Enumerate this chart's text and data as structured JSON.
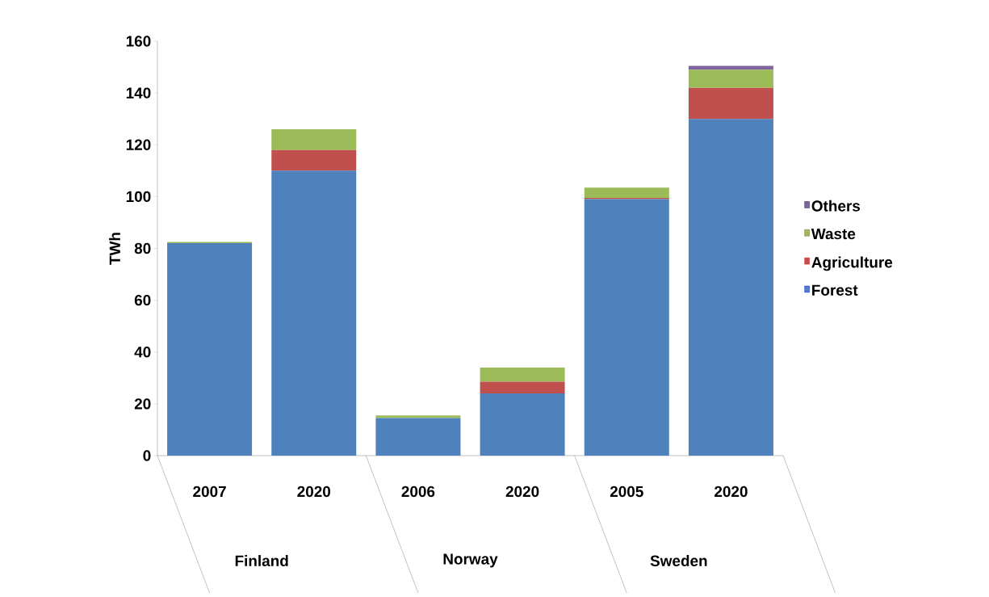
{
  "chart_data": {
    "type": "bar",
    "stacked": true,
    "ylabel": "TWh",
    "categories": [
      "2007",
      "2020",
      "2006",
      "2020",
      "2005",
      "2020"
    ],
    "annotations": [
      "Finland",
      "Norway",
      "Sweden"
    ],
    "series": [
      {
        "name": "Forest",
        "color": "#4f81bd",
        "values": [
          82,
          110,
          14.5,
          24,
          99,
          130
        ]
      },
      {
        "name": "Agriculture",
        "color": "#c0504d",
        "values": [
          0,
          8,
          0,
          4.5,
          0.5,
          12
        ]
      },
      {
        "name": "Waste",
        "color": "#9bbb59",
        "values": [
          0.5,
          8,
          1,
          5.5,
          4,
          7
        ]
      },
      {
        "name": "Others",
        "color": "#8064a2",
        "values": [
          0,
          0,
          0,
          0,
          0,
          1.5
        ]
      }
    ],
    "ylim": [
      0,
      160
    ],
    "yticks": [
      0,
      20,
      40,
      60,
      80,
      100,
      120,
      140,
      160
    ],
    "grid": false,
    "legend": "right"
  }
}
